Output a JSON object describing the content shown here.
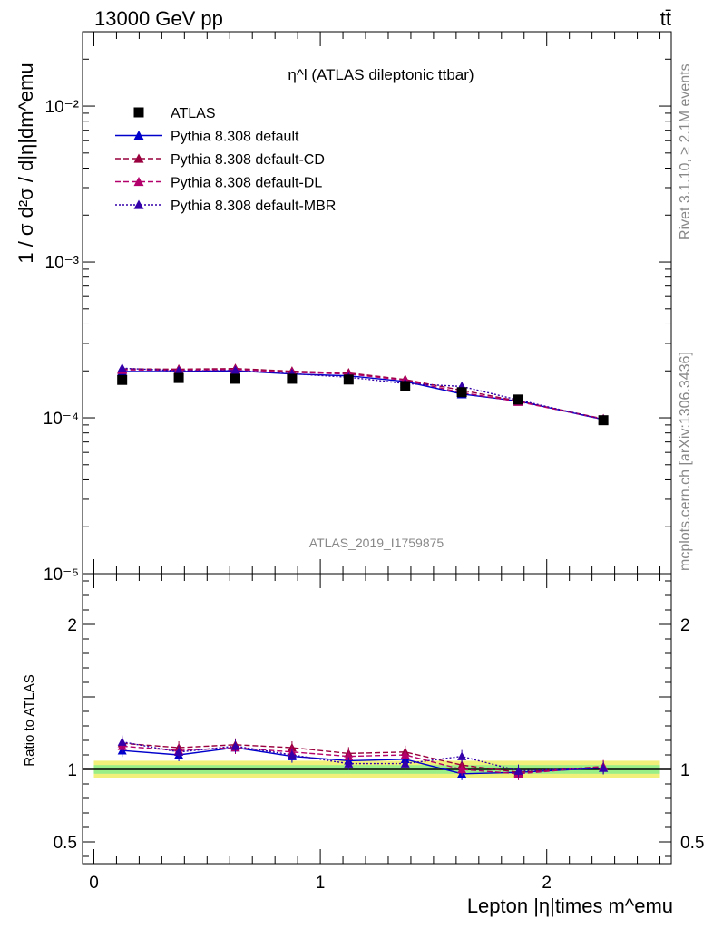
{
  "header": {
    "energy_label": "13000 GeV pp",
    "process_label": "tt̄"
  },
  "side": {
    "rivet_label": "Rivet 3.1.10, ≥ 2.1M events",
    "mcplots_label": "mcplots.cern.ch [arXiv:1306.3436]"
  },
  "chart_data": [
    {
      "type": "line",
      "panel": "main",
      "title": "η^l (ATLAS dileptonic ttbar)",
      "ylabel": "1 / σ d²σ / d|η|dm^emu",
      "yscale": "log",
      "ylim": [
        1e-05,
        0.03
      ],
      "xlim": [
        -0.05,
        2.55
      ],
      "y_tick_labels": [
        "10⁻⁵",
        "10⁻⁴",
        "10⁻³",
        "10⁻²"
      ],
      "watermark": "ATLAS_2019_I1759875",
      "legend_position": "top-left",
      "x": [
        0.125,
        0.375,
        0.625,
        0.875,
        1.125,
        1.375,
        1.625,
        1.875,
        2.25
      ],
      "series": [
        {
          "name": "ATLAS",
          "color": "#000000",
          "marker": "square",
          "values": [
            0.000175,
            0.00018,
            0.000178,
            0.000178,
            0.000176,
            0.00016,
            0.000146,
            0.000131,
            9.65e-05
          ]
        },
        {
          "name": "Pythia 8.308 default",
          "color": "#0000cc",
          "marker": "triangle",
          "line": "solid",
          "values": [
            0.000198,
            0.000198,
            0.0002,
            0.000191,
            0.000186,
            0.000171,
            0.000142,
            0.000128,
            9.75e-05
          ]
        },
        {
          "name": "Pythia 8.308 default-CD",
          "color": "#99003d",
          "marker": "triangle",
          "line": "dashed",
          "values": [
            0.000206,
            0.000205,
            0.000207,
            0.000199,
            0.000194,
            0.000176,
            0.00015,
            0.000128,
            9.85e-05
          ]
        },
        {
          "name": "Pythia 8.308 default-DL",
          "color": "#b3006b",
          "marker": "triangle",
          "line": "dashed",
          "values": [
            0.000203,
            0.000202,
            0.000204,
            0.000196,
            0.000191,
            0.000174,
            0.000145,
            0.000127,
            9.8e-05
          ]
        },
        {
          "name": "Pythia 8.308 default-MBR",
          "color": "#3300aa",
          "marker": "triangle",
          "line": "dotted",
          "values": [
            0.000208,
            0.0002,
            0.000201,
            0.000192,
            0.000182,
            0.000166,
            0.000159,
            0.00013,
            9.75e-05
          ]
        }
      ]
    },
    {
      "type": "line",
      "panel": "ratio",
      "ylabel": "Ratio to ATLAS",
      "xlabel": "Lepton |η|times m^emu",
      "ylim": [
        0.35,
        2.35
      ],
      "xlim": [
        -0.05,
        2.55
      ],
      "y_tick_labels": [
        "0.5",
        "1",
        "2"
      ],
      "x_tick_labels": [
        "0",
        "1",
        "2"
      ],
      "x": [
        0.125,
        0.375,
        0.625,
        0.875,
        1.125,
        1.375,
        1.625,
        1.875,
        2.25
      ],
      "band_inner": 0.03,
      "band_outer": 0.06,
      "series": [
        {
          "name": "Pythia 8.308 default",
          "color": "#0000cc",
          "line": "solid",
          "values": [
            1.13,
            1.1,
            1.15,
            1.09,
            1.06,
            1.07,
            0.97,
            0.98,
            1.01
          ]
        },
        {
          "name": "Pythia 8.308 default-CD",
          "color": "#99003d",
          "line": "dashed",
          "values": [
            1.18,
            1.15,
            1.17,
            1.15,
            1.11,
            1.12,
            1.03,
            0.98,
            1.02
          ]
        },
        {
          "name": "Pythia 8.308 default-DL",
          "color": "#b3006b",
          "line": "dashed",
          "values": [
            1.16,
            1.13,
            1.15,
            1.12,
            1.09,
            1.1,
            1.0,
            0.97,
            1.02
          ]
        },
        {
          "name": "Pythia 8.308 default-MBR",
          "color": "#3300aa",
          "line": "dotted",
          "values": [
            1.19,
            1.12,
            1.16,
            1.1,
            1.04,
            1.04,
            1.09,
            0.99,
            1.01
          ]
        }
      ]
    }
  ]
}
